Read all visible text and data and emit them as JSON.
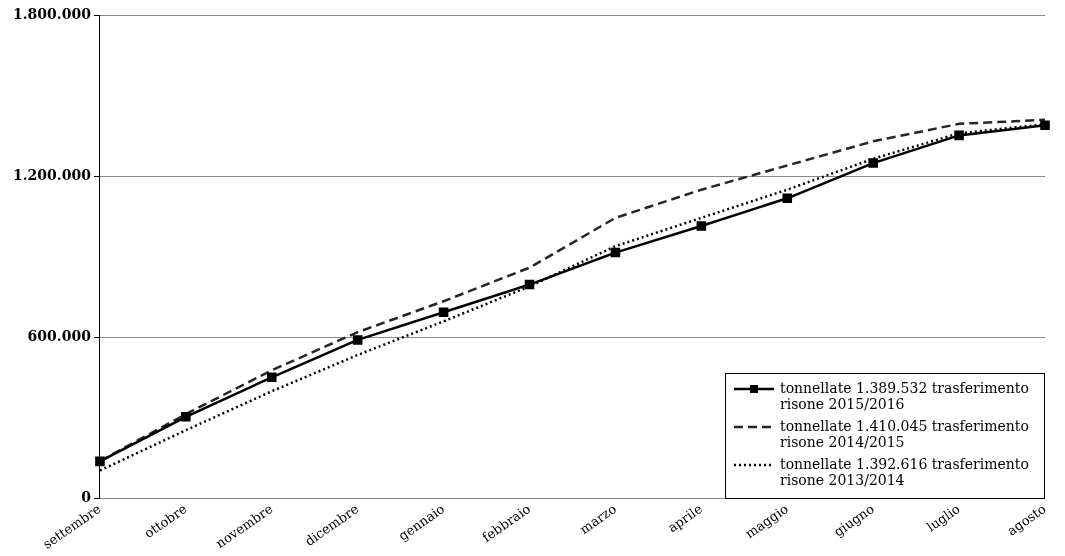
{
  "chart_data": {
    "type": "line",
    "categories": [
      "settembre",
      "ottobre",
      "novembre",
      "dicembre",
      "gennaio",
      "febbraio",
      "marzo",
      "aprile",
      "maggio",
      "giugno",
      "luglio",
      "agosto"
    ],
    "series": [
      {
        "name": "tonnellate 1.389.532 trasferimento risone 2015/2016",
        "color": "#000000",
        "marker": "square",
        "line_style": "solid",
        "values": [
          139000,
          305000,
          452000,
          591000,
          694000,
          797000,
          916000,
          1015000,
          1118000,
          1249000,
          1352000,
          1390000
        ]
      },
      {
        "name": "tonnellate 1.410.045 trasferimento risone 2014/2015",
        "color": "#262626",
        "marker": "none",
        "line_style": "dashed",
        "values": [
          140000,
          315000,
          478000,
          620000,
          735000,
          860000,
          1045000,
          1150000,
          1240000,
          1330000,
          1395000,
          1410000
        ]
      },
      {
        "name": "tonnellate 1.392.616 trasferimento risone 2013/2014",
        "color": "#000000",
        "marker": "none",
        "line_style": "dotted",
        "values": [
          105000,
          255000,
          400000,
          535000,
          660000,
          790000,
          940000,
          1045000,
          1150000,
          1265000,
          1360000,
          1393000
        ]
      }
    ],
    "ylim": [
      0,
      1800000
    ],
    "yticks": [
      {
        "value": 0,
        "label": "0"
      },
      {
        "value": 600000,
        "label": "600.000"
      },
      {
        "value": 1200000,
        "label": "1.200.000"
      },
      {
        "value": 1800000,
        "label": "1.800.000"
      }
    ],
    "grid": "y",
    "legend": "bottom right"
  }
}
